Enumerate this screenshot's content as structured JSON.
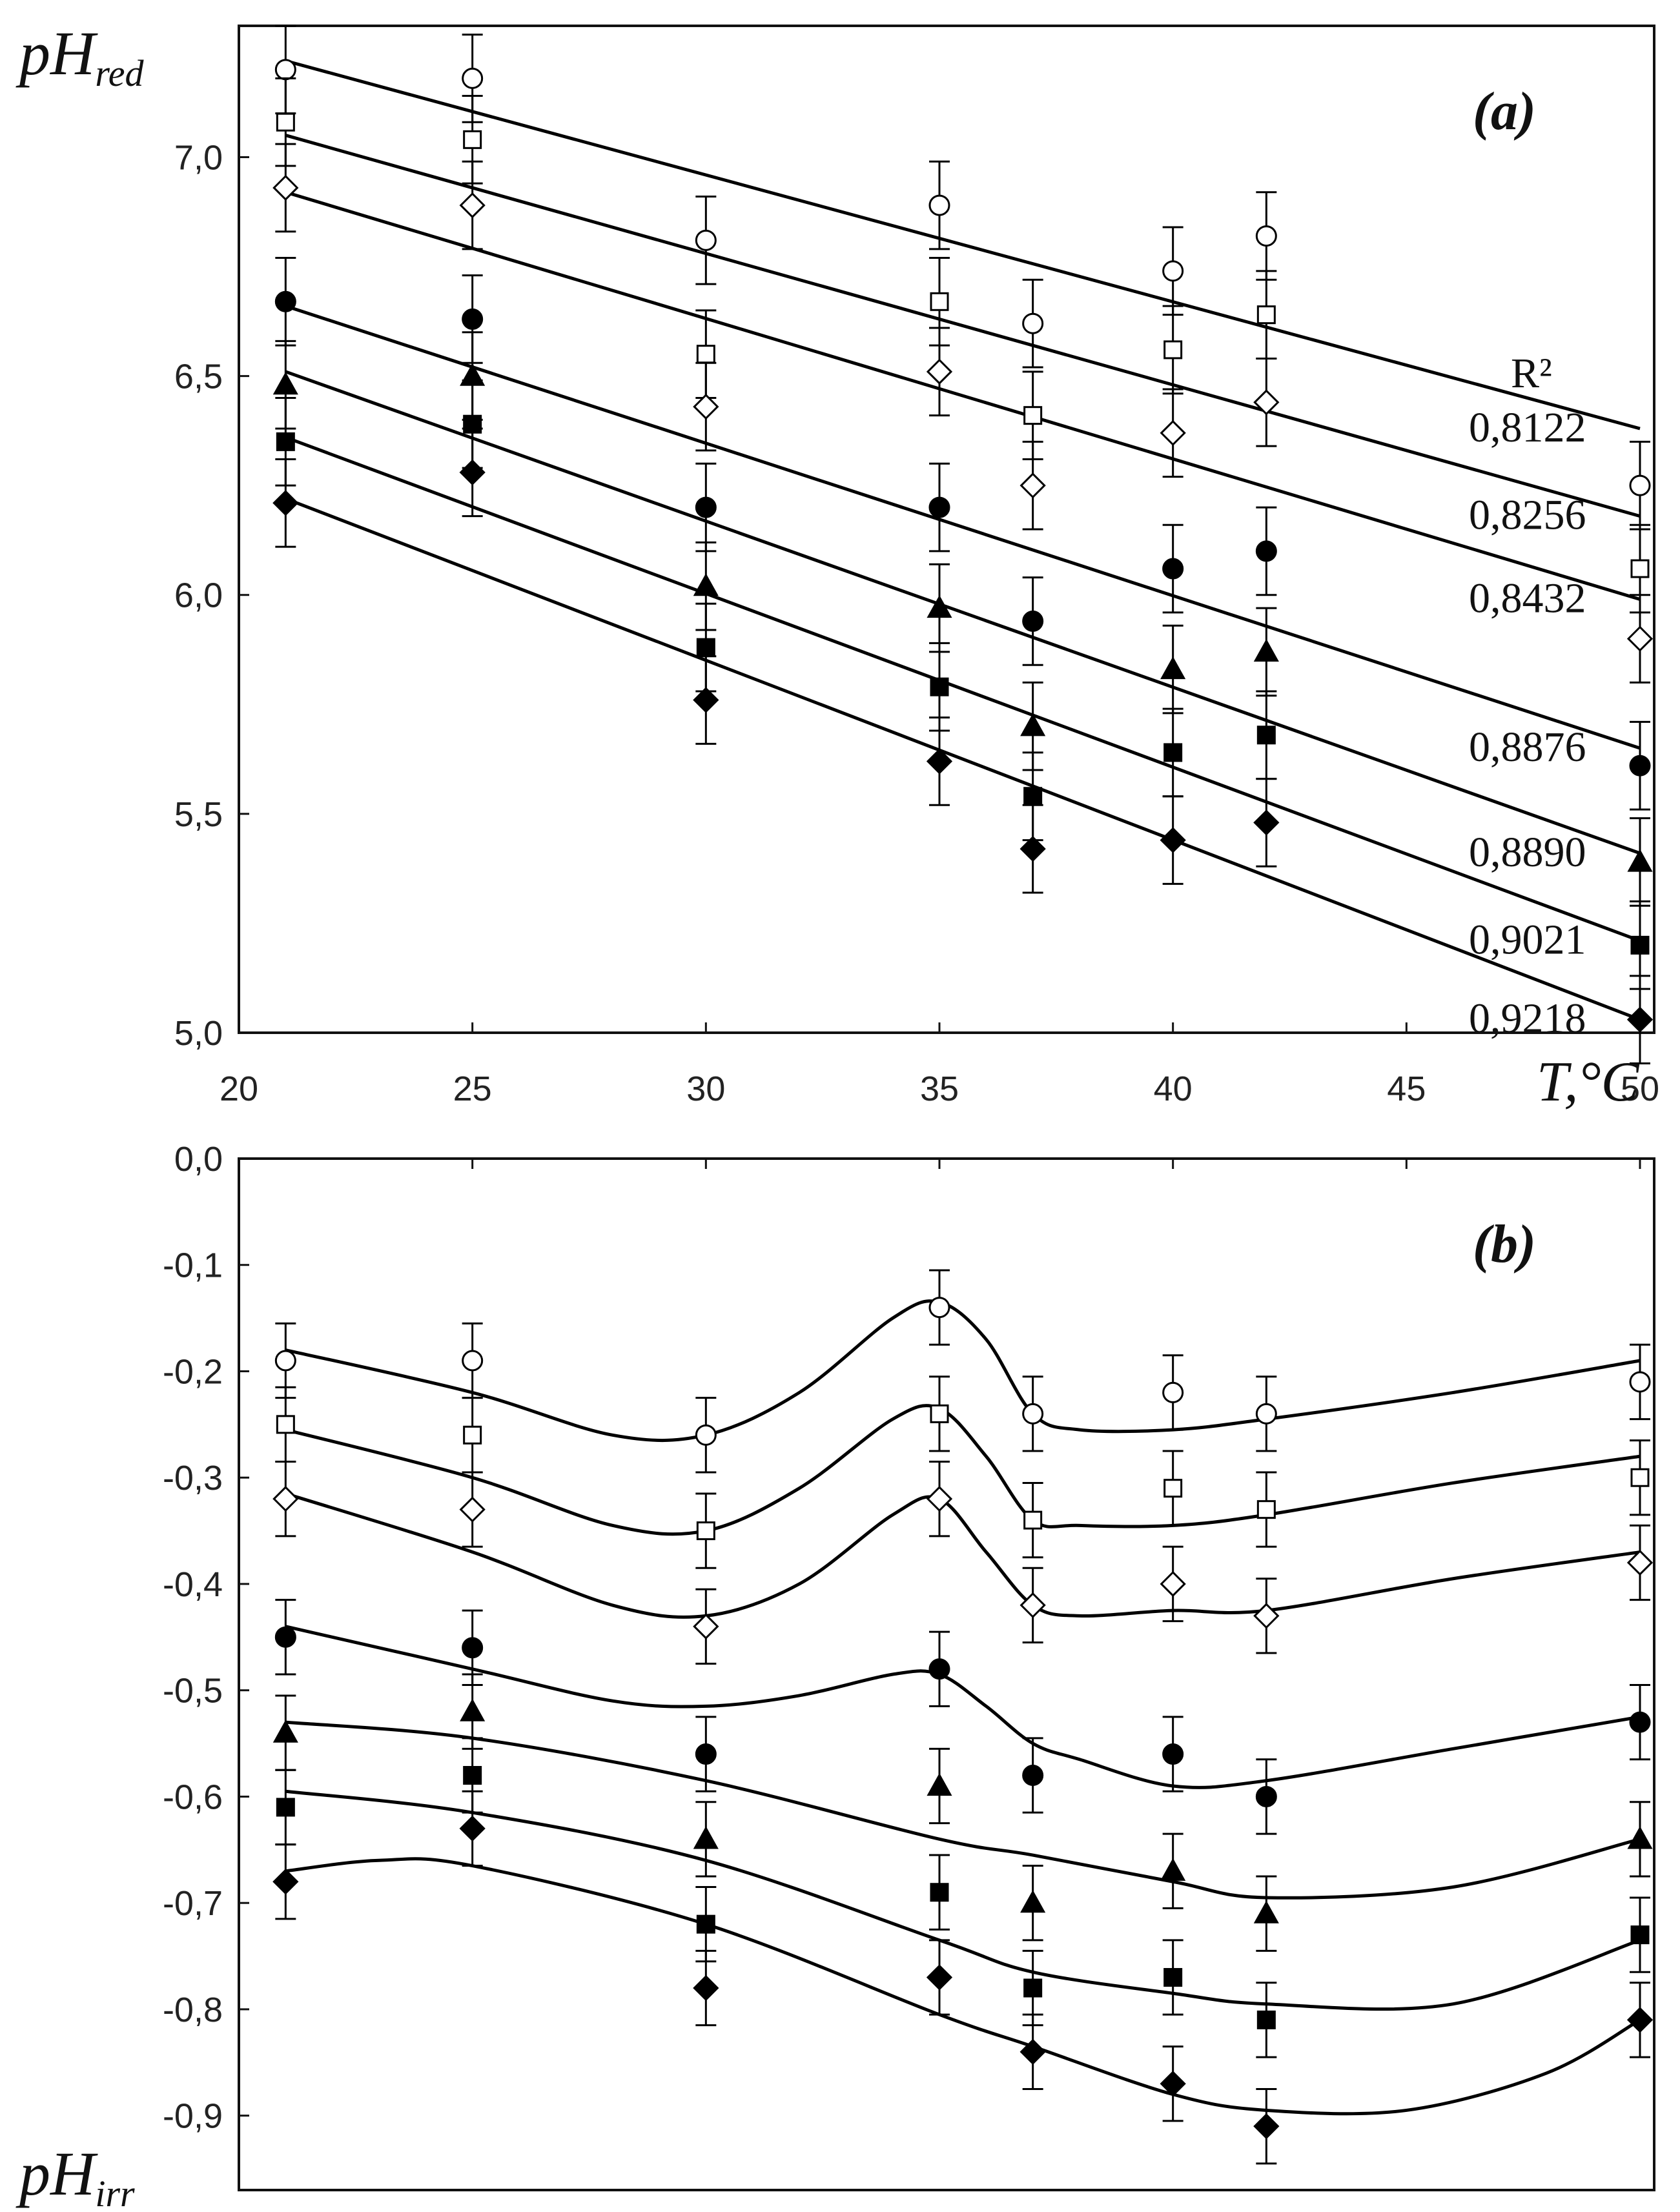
{
  "chart_data": [
    {
      "type": "scatter",
      "panel_label": "(a)",
      "ylabel": "pH",
      "ylabel_sub": "red",
      "xlabel": "T,°C",
      "xlim": [
        20,
        50
      ],
      "ylim": [
        5.0,
        7.3
      ],
      "xticks": [
        "20",
        "25",
        "30",
        "35",
        "40",
        "45",
        "50"
      ],
      "yticks": [
        "5,0",
        "5,5",
        "6,0",
        "6,5",
        "7,0"
      ],
      "x": [
        21,
        25,
        30,
        35,
        37,
        40,
        42,
        50
      ],
      "r2_title": "R²",
      "error": 0.1,
      "series": [
        {
          "marker": "open-circle",
          "values": [
            7.2,
            7.18,
            6.81,
            6.89,
            6.62,
            6.74,
            6.82,
            6.25
          ],
          "fit": [
            7.22,
            6.38
          ],
          "r2": "0,8122"
        },
        {
          "marker": "open-square",
          "values": [
            7.08,
            7.04,
            6.55,
            6.67,
            6.41,
            6.56,
            6.64,
            6.06
          ],
          "fit": [
            7.05,
            6.18
          ],
          "r2": "0,8256"
        },
        {
          "marker": "open-diamond",
          "values": [
            6.93,
            6.89,
            6.43,
            6.51,
            6.25,
            6.37,
            6.44,
            5.9
          ],
          "fit": [
            6.92,
            5.99
          ],
          "r2": "0,8432"
        },
        {
          "marker": "filled-circle",
          "values": [
            6.67,
            6.63,
            6.2,
            6.2,
            5.94,
            6.06,
            6.1,
            5.61
          ],
          "fit": [
            6.66,
            5.65
          ],
          "r2": "0,8876"
        },
        {
          "marker": "filled-triangle",
          "values": [
            6.48,
            6.5,
            6.02,
            5.97,
            5.7,
            5.83,
            5.87,
            5.39
          ],
          "fit": [
            6.51,
            5.41
          ],
          "r2": "0,8890"
        },
        {
          "marker": "filled-square",
          "values": [
            6.35,
            6.39,
            5.88,
            5.79,
            5.54,
            5.64,
            5.68,
            5.2
          ],
          "fit": [
            6.36,
            5.21
          ],
          "r2": "0,9021"
        },
        {
          "marker": "filled-diamond",
          "values": [
            6.21,
            6.28,
            5.76,
            5.62,
            5.42,
            5.44,
            5.48,
            5.03
          ],
          "fit": [
            6.22,
            5.03
          ],
          "r2": "0,9218"
        }
      ]
    },
    {
      "type": "scatter",
      "panel_label": "(b)",
      "ylabel": "pH",
      "ylabel_sub": "irr",
      "xlim": [
        20,
        50
      ],
      "ylim": [
        -0.97,
        0.0
      ],
      "yticks": [
        "0,0",
        "-0,1",
        "-0,2",
        "-0,3",
        "-0,4",
        "-0,5",
        "-0,6",
        "-0,7",
        "-0,8",
        "-0,9"
      ],
      "x": [
        21,
        25,
        30,
        35,
        37,
        40,
        42,
        50
      ],
      "error": 0.035,
      "series": [
        {
          "marker": "open-circle",
          "values": [
            -0.19,
            -0.19,
            -0.26,
            -0.14,
            -0.24,
            -0.22,
            -0.24,
            -0.21
          ],
          "curve": [
            [
              21,
              -0.18
            ],
            [
              25,
              -0.22
            ],
            [
              28,
              -0.26
            ],
            [
              30,
              -0.26
            ],
            [
              32,
              -0.22
            ],
            [
              34,
              -0.15
            ],
            [
              35,
              -0.135
            ],
            [
              36,
              -0.17
            ],
            [
              37,
              -0.24
            ],
            [
              38,
              -0.255
            ],
            [
              40,
              -0.255
            ],
            [
              42,
              -0.245
            ],
            [
              46,
              -0.22
            ],
            [
              50,
              -0.19
            ]
          ]
        },
        {
          "marker": "open-square",
          "values": [
            -0.25,
            -0.26,
            -0.35,
            -0.24,
            -0.34,
            -0.31,
            -0.33,
            -0.3
          ],
          "curve": [
            [
              21,
              -0.255
            ],
            [
              25,
              -0.3
            ],
            [
              28,
              -0.345
            ],
            [
              30,
              -0.35
            ],
            [
              32,
              -0.31
            ],
            [
              34,
              -0.245
            ],
            [
              35,
              -0.235
            ],
            [
              36,
              -0.28
            ],
            [
              37,
              -0.34
            ],
            [
              38,
              -0.345
            ],
            [
              40,
              -0.345
            ],
            [
              42,
              -0.335
            ],
            [
              46,
              -0.305
            ],
            [
              50,
              -0.28
            ]
          ]
        },
        {
          "marker": "open-diamond",
          "values": [
            -0.32,
            -0.33,
            -0.44,
            -0.32,
            -0.42,
            -0.4,
            -0.43,
            -0.38
          ],
          "curve": [
            [
              21,
              -0.315
            ],
            [
              25,
              -0.37
            ],
            [
              28,
              -0.42
            ],
            [
              30,
              -0.43
            ],
            [
              32,
              -0.4
            ],
            [
              34,
              -0.335
            ],
            [
              35,
              -0.32
            ],
            [
              36,
              -0.37
            ],
            [
              37,
              -0.42
            ],
            [
              38,
              -0.43
            ],
            [
              40,
              -0.425
            ],
            [
              42,
              -0.425
            ],
            [
              46,
              -0.395
            ],
            [
              50,
              -0.37
            ]
          ]
        },
        {
          "marker": "filled-circle",
          "values": [
            -0.45,
            -0.46,
            -0.56,
            -0.48,
            -0.58,
            -0.56,
            -0.6,
            -0.53
          ],
          "curve": [
            [
              21,
              -0.44
            ],
            [
              25,
              -0.48
            ],
            [
              28,
              -0.51
            ],
            [
              30,
              -0.515
            ],
            [
              32,
              -0.505
            ],
            [
              34,
              -0.485
            ],
            [
              35,
              -0.485
            ],
            [
              36,
              -0.515
            ],
            [
              37,
              -0.55
            ],
            [
              38,
              -0.565
            ],
            [
              40,
              -0.59
            ],
            [
              42,
              -0.585
            ],
            [
              46,
              -0.555
            ],
            [
              50,
              -0.525
            ]
          ]
        },
        {
          "marker": "filled-triangle",
          "values": [
            -0.54,
            -0.52,
            -0.64,
            -0.59,
            -0.7,
            -0.67,
            -0.71,
            -0.64
          ],
          "curve": [
            [
              21,
              -0.53
            ],
            [
              25,
              -0.545
            ],
            [
              30,
              -0.585
            ],
            [
              35,
              -0.64
            ],
            [
              37,
              -0.655
            ],
            [
              40,
              -0.68
            ],
            [
              42,
              -0.695
            ],
            [
              46,
              -0.685
            ],
            [
              50,
              -0.64
            ]
          ]
        },
        {
          "marker": "filled-square",
          "values": [
            -0.61,
            -0.58,
            -0.72,
            -0.69,
            -0.78,
            -0.77,
            -0.81,
            -0.73
          ],
          "curve": [
            [
              21,
              -0.595
            ],
            [
              25,
              -0.615
            ],
            [
              30,
              -0.66
            ],
            [
              35,
              -0.735
            ],
            [
              37,
              -0.765
            ],
            [
              40,
              -0.785
            ],
            [
              42,
              -0.795
            ],
            [
              46,
              -0.795
            ],
            [
              50,
              -0.735
            ]
          ]
        },
        {
          "marker": "filled-diamond",
          "values": [
            -0.68,
            -0.63,
            -0.78,
            -0.77,
            -0.84,
            -0.87,
            -0.91,
            -0.81
          ],
          "curve": [
            [
              21,
              -0.67
            ],
            [
              23,
              -0.66
            ],
            [
              25,
              -0.665
            ],
            [
              30,
              -0.72
            ],
            [
              35,
              -0.805
            ],
            [
              37,
              -0.835
            ],
            [
              40,
              -0.88
            ],
            [
              42,
              -0.895
            ],
            [
              45,
              -0.895
            ],
            [
              48,
              -0.86
            ],
            [
              50,
              -0.81
            ]
          ]
        }
      ]
    }
  ]
}
